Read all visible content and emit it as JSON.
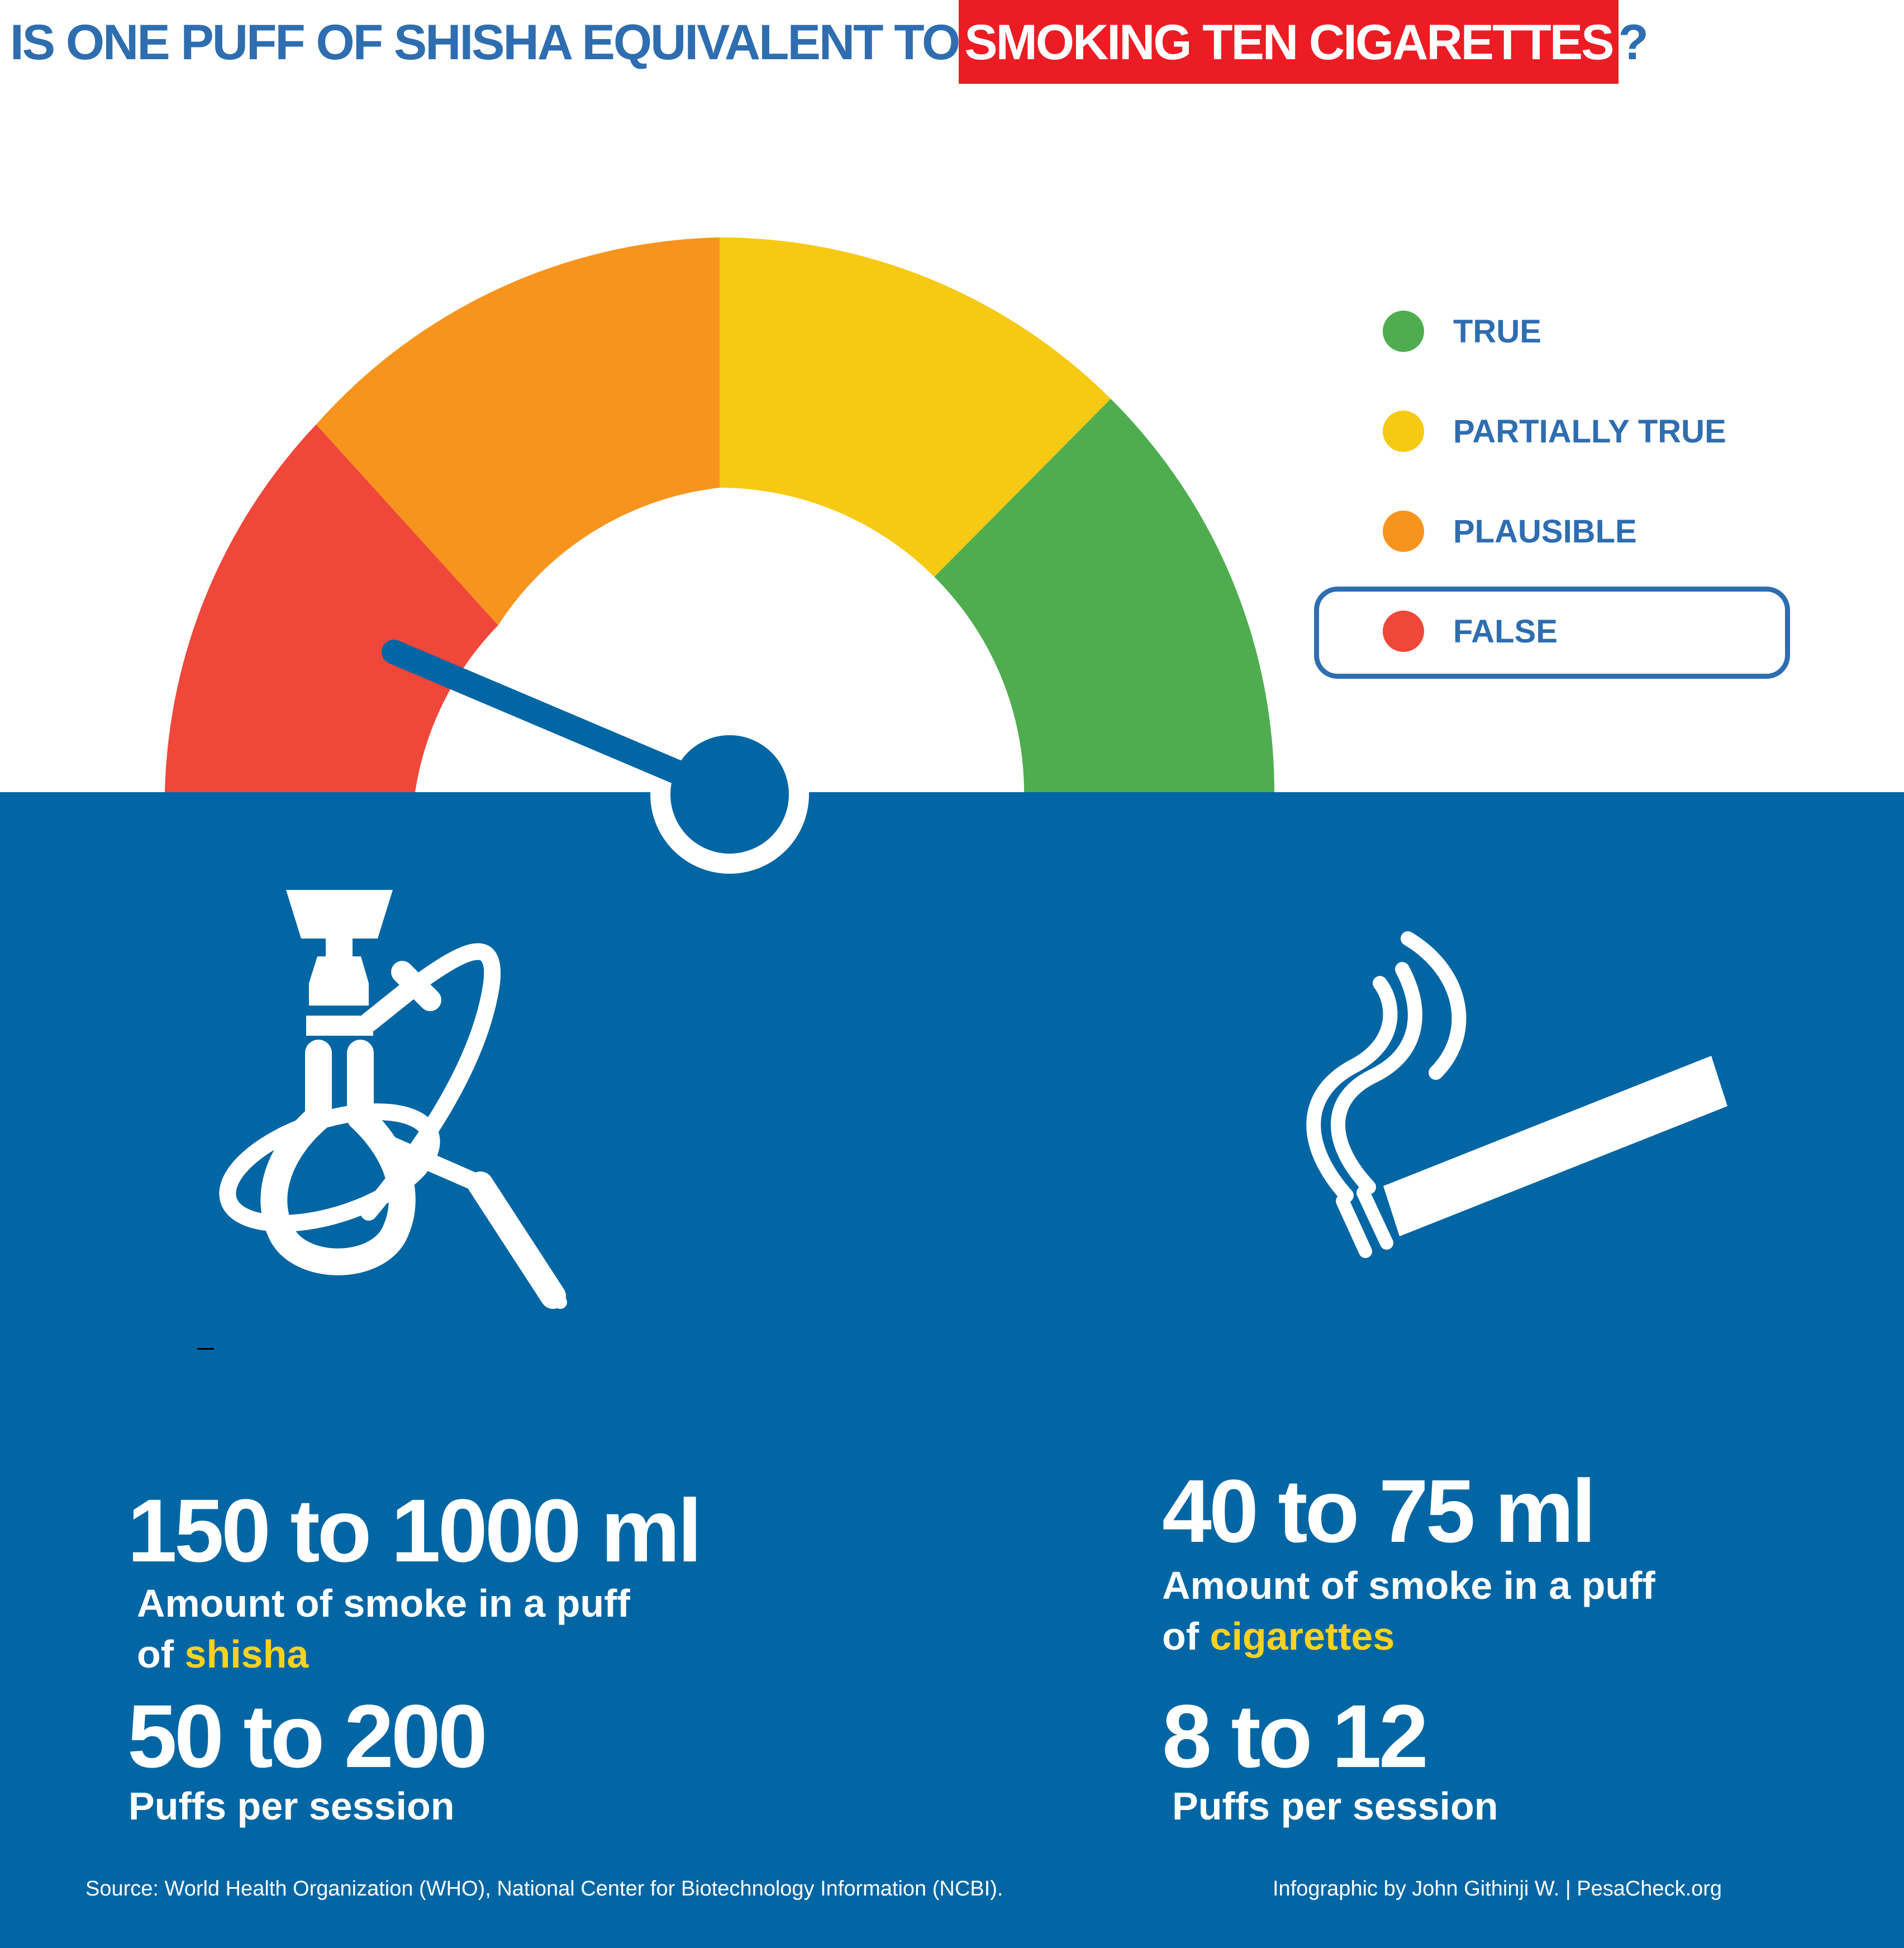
{
  "title": {
    "prefix": "IS ONE PUFF OF SHISHA EQUIVALENT TO ",
    "highlight": "SMOKING TEN CIGARETTES",
    "suffix": "?"
  },
  "colors": {
    "blue": "#2e6db0",
    "panel_blue": "#0266a4",
    "red_highlight": "#ec1c24",
    "false_red": "#ef473a",
    "plausible_orange": "#f7941e",
    "partially_true_yellow": "#f6c913",
    "true_green": "#4fad50",
    "accent_yellow": "#ffd21f"
  },
  "gauge": {
    "segments": [
      "false",
      "plausible",
      "partially-true",
      "true"
    ],
    "verdict": "FALSE"
  },
  "legend": [
    {
      "label": "TRUE",
      "color": "#4fad50"
    },
    {
      "label": "PARTIALLY TRUE",
      "color": "#f6c913"
    },
    {
      "label": "PLAUSIBLE",
      "color": "#f7941e"
    },
    {
      "label": "FALSE",
      "color": "#ef473a",
      "selected": true
    }
  ],
  "icons": [
    "hookah-icon",
    "cigarette-icon"
  ],
  "shisha": {
    "smoke_value": "150 to 1000 ml",
    "smoke_desc_line1": "Amount of smoke in a puff",
    "smoke_desc_prefix": "of ",
    "smoke_desc_highlight": "shisha",
    "puffs_value": "50 to 200",
    "puffs_desc": "Puffs per session"
  },
  "cigarettes": {
    "smoke_value": "40 to 75 ml",
    "smoke_desc_line1": "Amount of smoke in a puff",
    "smoke_desc_prefix": "of ",
    "smoke_desc_highlight": "cigarettes",
    "puffs_value": "8 to 12",
    "puffs_desc": "Puffs per session"
  },
  "footer": {
    "source": "Source: World Health Organization (WHO), National Center for Biotechnology Information (NCBI).",
    "credit": "Infographic by John Githinji W. | PesaCheck.org"
  }
}
